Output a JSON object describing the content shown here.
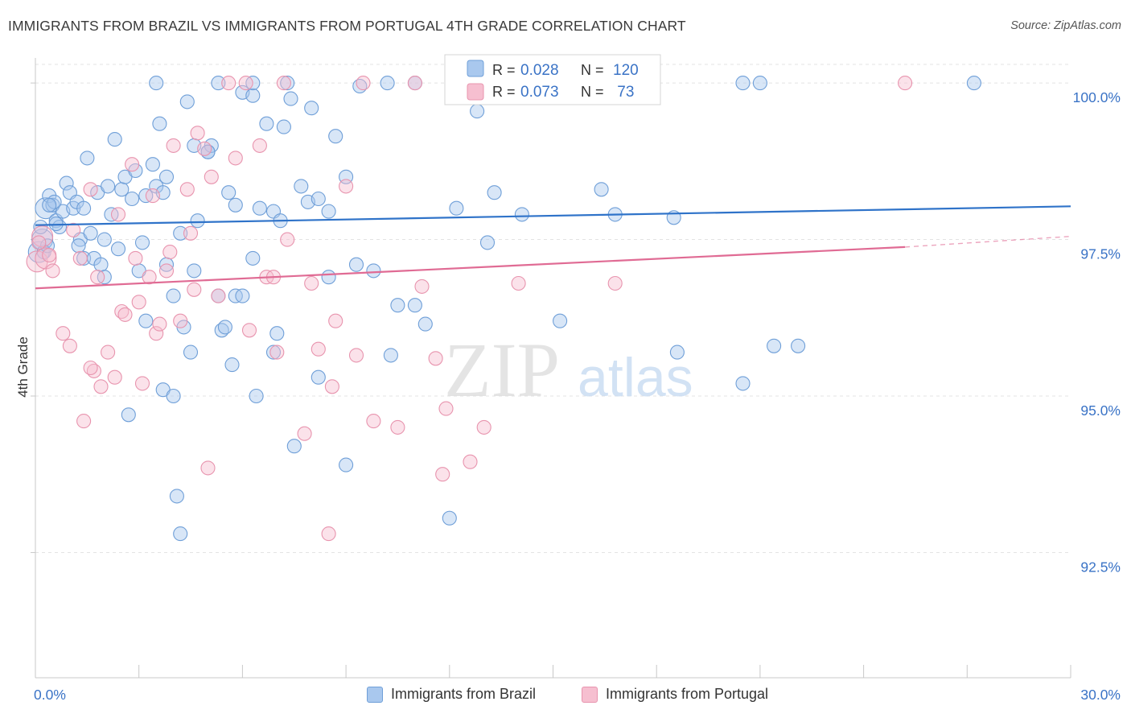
{
  "header": {
    "title": "IMMIGRANTS FROM BRAZIL VS IMMIGRANTS FROM PORTUGAL 4TH GRADE CORRELATION CHART",
    "source": "Source: ZipAtlas.com"
  },
  "watermark": {
    "zip": "ZIP",
    "atlas": "atlas"
  },
  "colors": {
    "brazil_fill": "#a9c8ee",
    "brazil_stroke": "#6f9fd8",
    "brazil_line": "#2f73c9",
    "portugal_fill": "#f6bfd0",
    "portugal_stroke": "#e894ae",
    "portugal_line": "#e06b94",
    "axis_label": "#3a73c6",
    "grid": "#e3e3e3"
  },
  "stats_box": {
    "rows": [
      {
        "r_label": "R = ",
        "r_value": "0.028",
        "n_label": "N = ",
        "n_value": "120"
      },
      {
        "r_label": "R = ",
        "r_value": "0.073",
        "n_label": "N = ",
        "n_value": " 73"
      }
    ]
  },
  "chart_data": {
    "type": "scatter",
    "title": "IMMIGRANTS FROM BRAZIL VS IMMIGRANTS FROM PORTUGAL 4TH GRADE CORRELATION CHART",
    "xlabel": "",
    "ylabel": "4th Grade",
    "xlim": [
      0,
      30
    ],
    "ylim": [
      90.5,
      100.4
    ],
    "x_tick_labels": [
      "0.0%",
      "30.0%"
    ],
    "y_ticks": [
      92.5,
      95.0,
      97.5,
      100.0
    ],
    "y_tick_labels": [
      "92.5%",
      "95.0%",
      "97.5%",
      "100.0%"
    ],
    "grid": true,
    "legend_position": "bottom-center",
    "series": [
      {
        "name": "Immigrants from Brazil",
        "R": 0.028,
        "N": 120,
        "trend": {
          "x": [
            0,
            30
          ],
          "y": [
            97.73,
            98.03
          ]
        },
        "points": [
          [
            0.1,
            97.3
          ],
          [
            0.2,
            97.5
          ],
          [
            0.3,
            98.0
          ],
          [
            0.4,
            98.2
          ],
          [
            0.5,
            98.05
          ],
          [
            0.6,
            97.8
          ],
          [
            0.7,
            97.7
          ],
          [
            0.8,
            97.95
          ],
          [
            0.9,
            98.4
          ],
          [
            1.0,
            98.25
          ],
          [
            1.1,
            98.0
          ],
          [
            1.2,
            98.1
          ],
          [
            1.3,
            97.5
          ],
          [
            1.4,
            97.2
          ],
          [
            1.5,
            98.8
          ],
          [
            1.6,
            97.6
          ],
          [
            1.7,
            97.2
          ],
          [
            1.8,
            98.25
          ],
          [
            2.0,
            97.5
          ],
          [
            2.1,
            98.35
          ],
          [
            2.2,
            97.9
          ],
          [
            2.3,
            99.1
          ],
          [
            2.4,
            97.35
          ],
          [
            2.5,
            98.3
          ],
          [
            2.6,
            98.5
          ],
          [
            2.8,
            98.15
          ],
          [
            2.9,
            98.6
          ],
          [
            3.1,
            97.45
          ],
          [
            3.2,
            98.2
          ],
          [
            3.4,
            98.7
          ],
          [
            3.5,
            98.35
          ],
          [
            3.6,
            99.35
          ],
          [
            3.7,
            98.25
          ],
          [
            3.8,
            98.5
          ],
          [
            4.2,
            97.6
          ],
          [
            4.4,
            99.7
          ],
          [
            4.6,
            99.0
          ],
          [
            4.7,
            97.8
          ],
          [
            5.0,
            98.9
          ],
          [
            5.1,
            99.0
          ],
          [
            5.3,
            96.6
          ],
          [
            5.4,
            96.05
          ],
          [
            5.6,
            98.25
          ],
          [
            5.8,
            98.05
          ],
          [
            6.0,
            99.85
          ],
          [
            6.3,
            99.8
          ],
          [
            6.5,
            98.0
          ],
          [
            6.7,
            99.35
          ],
          [
            6.9,
            97.95
          ],
          [
            7.1,
            97.8
          ],
          [
            7.2,
            99.3
          ],
          [
            7.4,
            99.75
          ],
          [
            7.7,
            98.35
          ],
          [
            7.9,
            98.1
          ],
          [
            8.0,
            99.6
          ],
          [
            8.2,
            98.15
          ],
          [
            8.5,
            97.95
          ],
          [
            8.7,
            99.15
          ],
          [
            9.0,
            98.5
          ],
          [
            9.4,
            99.95
          ],
          [
            9.8,
            97.0
          ],
          [
            10.2,
            100.0
          ],
          [
            10.5,
            96.45
          ],
          [
            11.0,
            100.0
          ],
          [
            11.3,
            96.15
          ],
          [
            12.2,
            98.0
          ],
          [
            12.8,
            99.55
          ],
          [
            13.1,
            97.45
          ],
          [
            13.3,
            98.25
          ],
          [
            13.6,
            100.0
          ],
          [
            14.1,
            97.9
          ],
          [
            14.7,
            100.0
          ],
          [
            15.2,
            96.2
          ],
          [
            15.5,
            100.0
          ],
          [
            16.0,
            100.0
          ],
          [
            16.4,
            98.3
          ],
          [
            16.8,
            97.9
          ],
          [
            18.5,
            97.85
          ],
          [
            18.6,
            95.7
          ],
          [
            20.5,
            100.0
          ],
          [
            21.0,
            100.0
          ],
          [
            21.4,
            95.8
          ],
          [
            27.2,
            100.0
          ],
          [
            3.7,
            95.1
          ],
          [
            4.0,
            95.0
          ],
          [
            2.7,
            94.7
          ],
          [
            4.1,
            93.4
          ],
          [
            4.2,
            92.8
          ],
          [
            4.5,
            95.7
          ],
          [
            5.7,
            95.5
          ],
          [
            6.4,
            95.0
          ],
          [
            6.9,
            95.7
          ],
          [
            7.5,
            94.2
          ],
          [
            8.2,
            95.3
          ],
          [
            9.0,
            93.9
          ],
          [
            10.3,
            95.65
          ],
          [
            11.0,
            96.45
          ],
          [
            12.0,
            93.05
          ],
          [
            4.6,
            97.0
          ],
          [
            3.8,
            97.1
          ],
          [
            5.8,
            96.6
          ],
          [
            6.0,
            96.6
          ],
          [
            8.5,
            96.9
          ],
          [
            9.3,
            97.1
          ],
          [
            4.3,
            96.1
          ],
          [
            0.25,
            97.3
          ],
          [
            0.15,
            97.7
          ],
          [
            0.35,
            97.4
          ],
          [
            1.25,
            97.4
          ],
          [
            0.55,
            98.1
          ],
          [
            1.9,
            97.1
          ],
          [
            2.0,
            96.9
          ],
          [
            3.0,
            97.0
          ],
          [
            3.2,
            96.2
          ],
          [
            4.0,
            96.6
          ],
          [
            5.5,
            96.1
          ],
          [
            6.3,
            97.2
          ],
          [
            7.0,
            96.0
          ],
          [
            0.4,
            98.05
          ],
          [
            0.6,
            97.75
          ],
          [
            20.5,
            95.2
          ],
          [
            22.1,
            95.8
          ],
          [
            1.4,
            98.0
          ],
          [
            5.0,
            98.9
          ],
          [
            6.3,
            100.0
          ],
          [
            3.5,
            100.0
          ],
          [
            5.3,
            100.0
          ],
          [
            7.3,
            100.0
          ]
        ]
      },
      {
        "name": "Immigrants from Portugal",
        "R": 0.073,
        "N": 73,
        "trend": {
          "x": [
            0,
            25.2
          ],
          "y": [
            96.72,
            97.38
          ]
        },
        "trend_dashed": {
          "x": [
            25.2,
            30
          ],
          "y": [
            97.38,
            97.55
          ]
        },
        "points": [
          [
            0.05,
            97.15
          ],
          [
            0.2,
            97.55
          ],
          [
            0.3,
            97.2
          ],
          [
            0.5,
            97.0
          ],
          [
            0.8,
            96.0
          ],
          [
            1.0,
            95.8
          ],
          [
            1.1,
            97.65
          ],
          [
            1.3,
            97.2
          ],
          [
            1.4,
            94.6
          ],
          [
            1.6,
            98.3
          ],
          [
            1.7,
            95.4
          ],
          [
            1.8,
            96.9
          ],
          [
            1.9,
            95.15
          ],
          [
            2.1,
            95.7
          ],
          [
            2.3,
            95.3
          ],
          [
            2.4,
            97.9
          ],
          [
            2.5,
            96.35
          ],
          [
            2.6,
            96.3
          ],
          [
            2.8,
            98.7
          ],
          [
            2.9,
            97.2
          ],
          [
            3.0,
            96.5
          ],
          [
            3.1,
            95.2
          ],
          [
            3.3,
            96.9
          ],
          [
            3.4,
            98.2
          ],
          [
            3.5,
            96.0
          ],
          [
            3.6,
            96.15
          ],
          [
            3.8,
            97.0
          ],
          [
            3.9,
            97.3
          ],
          [
            4.0,
            99.0
          ],
          [
            4.2,
            96.2
          ],
          [
            4.4,
            98.3
          ],
          [
            4.5,
            97.6
          ],
          [
            4.6,
            96.7
          ],
          [
            4.7,
            99.2
          ],
          [
            4.9,
            98.95
          ],
          [
            5.0,
            93.85
          ],
          [
            5.1,
            98.5
          ],
          [
            5.3,
            96.6
          ],
          [
            5.6,
            100.0
          ],
          [
            5.8,
            98.8
          ],
          [
            6.1,
            100.0
          ],
          [
            6.2,
            96.05
          ],
          [
            6.5,
            99.0
          ],
          [
            6.7,
            96.9
          ],
          [
            6.9,
            96.9
          ],
          [
            7.0,
            95.7
          ],
          [
            7.2,
            100.0
          ],
          [
            7.3,
            97.5
          ],
          [
            7.8,
            94.4
          ],
          [
            8.0,
            96.8
          ],
          [
            8.2,
            95.75
          ],
          [
            8.5,
            92.8
          ],
          [
            8.6,
            95.15
          ],
          [
            8.7,
            96.2
          ],
          [
            9.0,
            98.35
          ],
          [
            9.3,
            95.65
          ],
          [
            9.5,
            100.0
          ],
          [
            9.8,
            94.6
          ],
          [
            10.5,
            94.5
          ],
          [
            11.0,
            100.0
          ],
          [
            11.2,
            96.75
          ],
          [
            11.6,
            95.6
          ],
          [
            11.8,
            93.75
          ],
          [
            11.9,
            94.8
          ],
          [
            12.6,
            93.95
          ],
          [
            13.0,
            94.5
          ],
          [
            13.8,
            100.0
          ],
          [
            14.0,
            96.8
          ],
          [
            16.8,
            96.8
          ],
          [
            25.2,
            100.0
          ],
          [
            0.1,
            97.45
          ],
          [
            1.6,
            95.45
          ],
          [
            0.4,
            97.25
          ]
        ]
      }
    ]
  },
  "legend": {
    "items": [
      {
        "label": "Immigrants from Brazil"
      },
      {
        "label": "Immigrants from Portugal"
      }
    ]
  }
}
